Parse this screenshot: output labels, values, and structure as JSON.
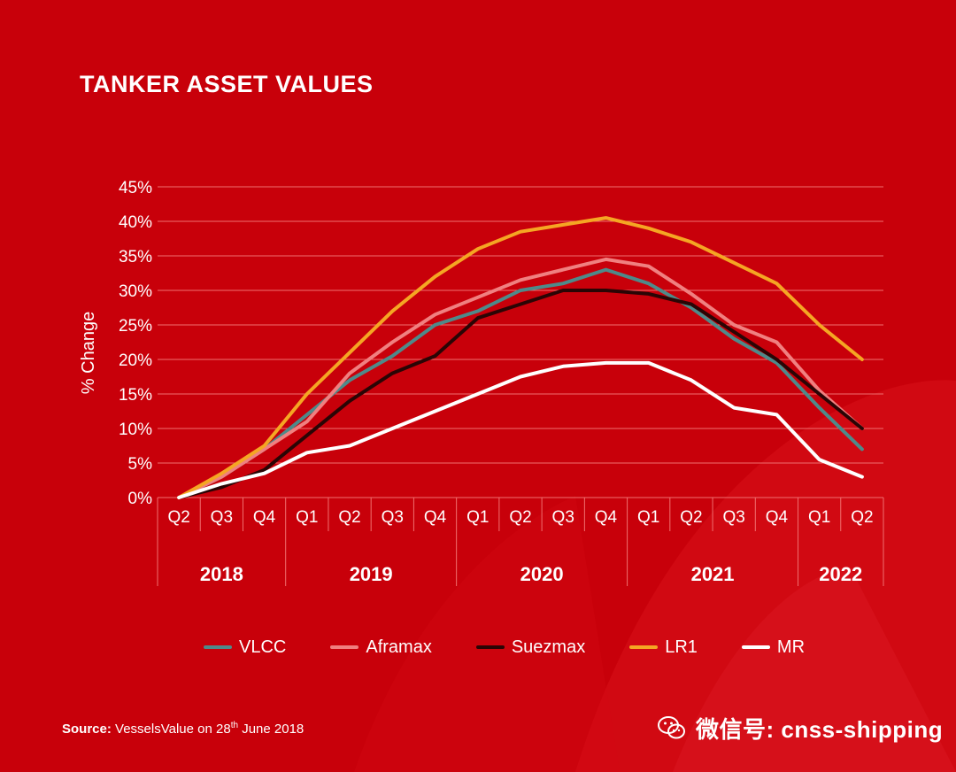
{
  "title": "TANKER ASSET VALUES",
  "chart_data": {
    "type": "line",
    "title": "TANKER ASSET VALUES",
    "ylabel": "% Change",
    "xlabel": "",
    "ylim": [
      0,
      45
    ],
    "yticks": [
      0,
      5,
      10,
      15,
      20,
      25,
      30,
      35,
      40,
      45
    ],
    "ytick_labels": [
      "0%",
      "5%",
      "10%",
      "15%",
      "20%",
      "25%",
      "30%",
      "35%",
      "40%",
      "45%"
    ],
    "grid": true,
    "categories": [
      "Q2",
      "Q3",
      "Q4",
      "Q1",
      "Q2",
      "Q3",
      "Q4",
      "Q1",
      "Q2",
      "Q3",
      "Q4",
      "Q1",
      "Q2",
      "Q3",
      "Q4",
      "Q1",
      "Q2"
    ],
    "year_groups": [
      {
        "year": "2018",
        "quarters": 3
      },
      {
        "year": "2019",
        "quarters": 4
      },
      {
        "year": "2020",
        "quarters": 4
      },
      {
        "year": "2021",
        "quarters": 4
      },
      {
        "year": "2022",
        "quarters": 2
      }
    ],
    "series": [
      {
        "name": "VLCC",
        "color": "#4e8a8a",
        "values": [
          0,
          3,
          7,
          12,
          17,
          20.5,
          25,
          27,
          30,
          31,
          33,
          31,
          27.5,
          23,
          19.5,
          13,
          7
        ]
      },
      {
        "name": "Aframax",
        "color": "#f08080",
        "values": [
          0,
          3,
          7,
          11,
          18,
          22.5,
          26.5,
          29,
          31.5,
          33,
          34.5,
          33.5,
          29.5,
          25,
          22.5,
          15.5,
          10
        ]
      },
      {
        "name": "Suezmax",
        "color": "#2a0505",
        "values": [
          0,
          1.5,
          4,
          9,
          14,
          18,
          20.5,
          26,
          28,
          30,
          30,
          29.5,
          28,
          24,
          20,
          15,
          10
        ]
      },
      {
        "name": "LR1",
        "color": "#f5a623",
        "values": [
          0,
          3.5,
          7.5,
          15,
          21,
          27,
          32,
          36,
          38.5,
          39.5,
          40.5,
          39,
          37,
          34,
          31,
          25,
          20
        ]
      },
      {
        "name": "MR",
        "color": "#ffffff",
        "values": [
          0,
          2,
          3.5,
          6.5,
          7.5,
          10,
          12.5,
          15,
          17.5,
          19,
          19.5,
          19.5,
          17,
          13,
          12,
          5.5,
          3
        ]
      }
    ]
  },
  "source": {
    "label": "Source:",
    "text": "VesselsValue on 28",
    "superscript": "th",
    "tail": " June 2018"
  },
  "watermark": {
    "icon": "wechat-icon",
    "text": "微信号: cnss-shipping"
  },
  "colors": {
    "background": "#c8000a",
    "grid": "#f07070",
    "text": "#ffffff"
  }
}
